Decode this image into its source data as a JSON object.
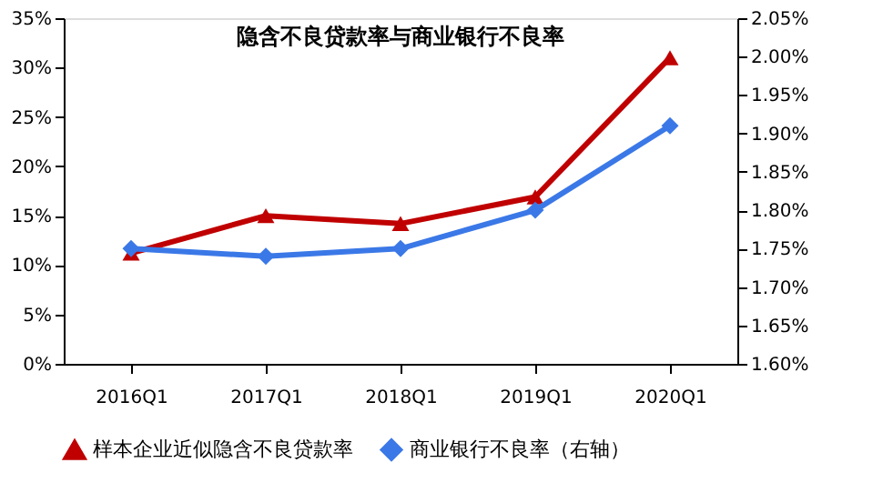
{
  "chart_data": {
    "type": "line",
    "title": "隐含不良贷款率与商业银行不良率",
    "categories": [
      "2016Q1",
      "2017Q1",
      "2018Q1",
      "2019Q1",
      "2020Q1"
    ],
    "series": [
      {
        "name": "样本企业近似隐含不良贷款率",
        "color": "#c00000",
        "marker": "triangle",
        "values": [
          11.2,
          15.0,
          14.2,
          16.9,
          31.0
        ]
      },
      {
        "name": "商业银行不良率（右轴）",
        "color": "#3b78e7",
        "marker": "diamond",
        "axis": "y2",
        "values": [
          1.75,
          1.74,
          1.75,
          1.8,
          1.91
        ]
      }
    ],
    "ylim": [
      0,
      35
    ],
    "yticks": [
      {
        "value": 0,
        "label": "0%"
      },
      {
        "value": 5,
        "label": "5%"
      },
      {
        "value": 10,
        "label": "10%"
      },
      {
        "value": 15,
        "label": "15%"
      },
      {
        "value": 20,
        "label": "20%"
      },
      {
        "value": 25,
        "label": "25%"
      },
      {
        "value": 30,
        "label": "30%"
      },
      {
        "value": 35,
        "label": "35%"
      }
    ],
    "y2lim": [
      1.6,
      2.05
    ],
    "y2ticks": [
      {
        "value": 1.6,
        "label": "1.60%"
      },
      {
        "value": 1.65,
        "label": "1.65%"
      },
      {
        "value": 1.7,
        "label": "1.70%"
      },
      {
        "value": 1.75,
        "label": "1.75%"
      },
      {
        "value": 1.8,
        "label": "1.80%"
      },
      {
        "value": 1.85,
        "label": "1.85%"
      },
      {
        "value": 1.9,
        "label": "1.90%"
      },
      {
        "value": 1.95,
        "label": "1.95%"
      },
      {
        "value": 2.0,
        "label": "2.00%"
      },
      {
        "value": 2.05,
        "label": "2.05%"
      }
    ],
    "grid": false,
    "legend": "bottom",
    "line_style": "solid"
  }
}
